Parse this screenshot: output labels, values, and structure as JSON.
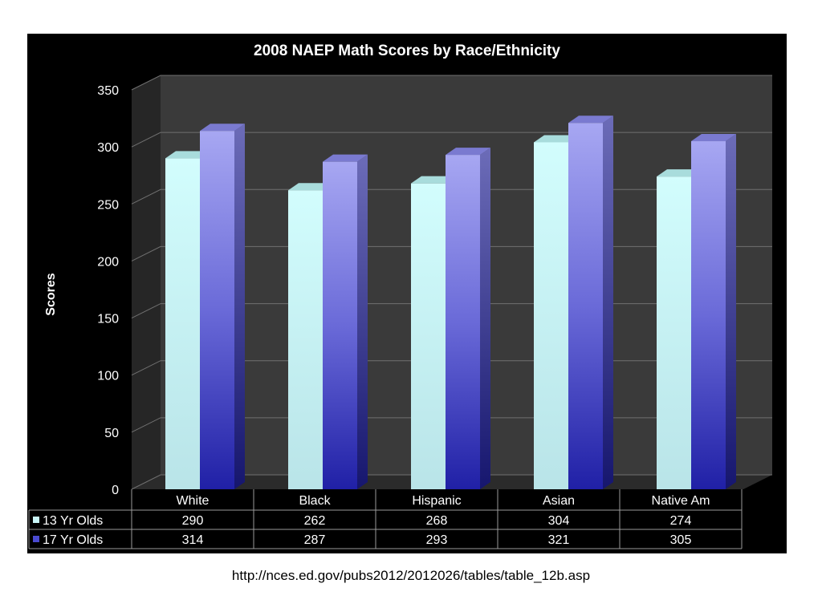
{
  "source_url": "http://nces.ed.gov/pubs2012/2012026/tables/table_12b.asp",
  "colors": {
    "panel_bg": "#000000",
    "plot_wall": "#3d3d3d",
    "series_13": "#c9f6f8",
    "series_17": "#6f6fe0",
    "series_17_dark": "#2626a8"
  },
  "chart_data": {
    "type": "bar",
    "title": "2008 NAEP Math Scores by Race/Ethnicity",
    "xlabel": "",
    "ylabel": "Scores",
    "ylim": [
      0,
      350
    ],
    "yticks": [
      0,
      50,
      100,
      150,
      200,
      250,
      300,
      350
    ],
    "grid": true,
    "style": "3d-clustered-column",
    "legend": "data-table-below",
    "categories": [
      "White",
      "Black",
      "Hispanic",
      "Asian",
      "Native Am"
    ],
    "series": [
      {
        "name": "13 Yr Olds",
        "values": [
          290,
          262,
          268,
          304,
          274
        ]
      },
      {
        "name": "17 Yr Olds",
        "values": [
          314,
          287,
          293,
          321,
          305
        ]
      }
    ]
  }
}
